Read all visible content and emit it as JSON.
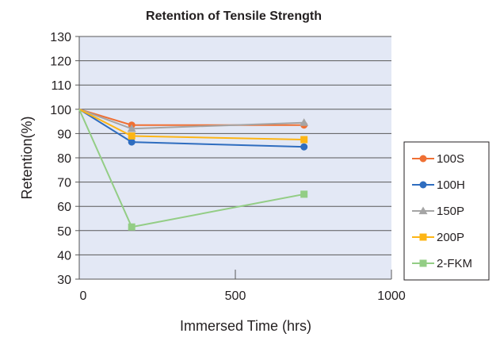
{
  "chart_data": {
    "type": "line",
    "title": "Retention of Tensile Strength",
    "xlabel": "Immersed Time (hrs)",
    "ylabel": "Retention(%)",
    "xlim": [
      0,
      1000
    ],
    "ylim": [
      30,
      130
    ],
    "x_ticks": [
      0,
      500,
      1000
    ],
    "y_ticks": [
      30,
      40,
      50,
      60,
      70,
      80,
      90,
      100,
      110,
      120,
      130
    ],
    "grid": "horizontal",
    "legend_position": "right",
    "plot_background": "#e3e8f5",
    "series": [
      {
        "name": "100S",
        "color": "#ef7034",
        "marker": "circle",
        "x": [
          0,
          168,
          720
        ],
        "y": [
          100,
          93.5,
          93.5
        ]
      },
      {
        "name": "100H",
        "color": "#2f6dbf",
        "marker": "circle",
        "x": [
          0,
          168,
          720
        ],
        "y": [
          100,
          86.5,
          84.5
        ]
      },
      {
        "name": "150P",
        "color": "#a5a5a5",
        "marker": "triangle",
        "x": [
          0,
          168,
          720
        ],
        "y": [
          100,
          92,
          94.5
        ]
      },
      {
        "name": "200P",
        "color": "#fdb515",
        "marker": "square",
        "x": [
          0,
          168,
          720
        ],
        "y": [
          100,
          89,
          87.5
        ]
      },
      {
        "name": "2-FKM",
        "color": "#93cd85",
        "marker": "square",
        "x": [
          0,
          168,
          720
        ],
        "y": [
          100,
          51.5,
          65
        ]
      }
    ]
  }
}
